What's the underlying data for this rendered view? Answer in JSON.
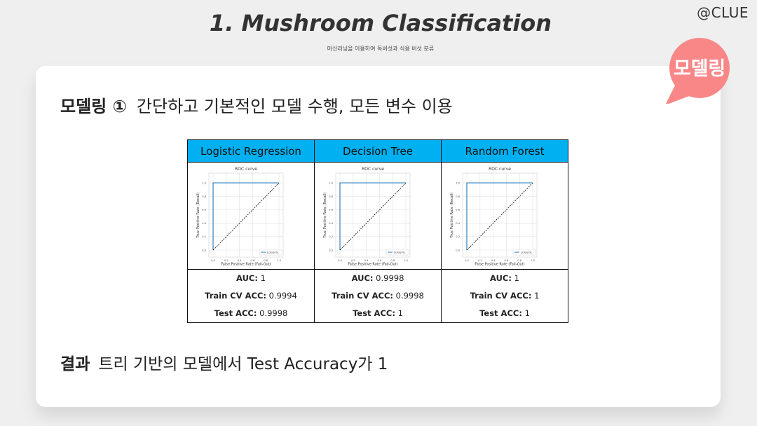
{
  "brand": "@CLUE",
  "title": "1.  Mushroom Classification",
  "subtitle": "머신러닝을 이용하여 독버섯과 식용 버섯 분류",
  "badge": {
    "label": "모델링",
    "color": "#f98788"
  },
  "heading": {
    "label": "모델링 ①",
    "text": "간단하고 기본적인 모델 수행, 모든 변수 이용"
  },
  "models": [
    {
      "name": "Logistic Regression",
      "metrics": [
        {
          "label": "AUC:",
          "value": " 1"
        },
        {
          "label": "Train CV ACC:",
          "value": " 0.9994"
        },
        {
          "label": "Test ACC:",
          "value": " 0.9998"
        }
      ]
    },
    {
      "name": "Decision Tree",
      "metrics": [
        {
          "label": "AUC:",
          "value": " 0.9998"
        },
        {
          "label": "Train CV ACC:",
          "value": " 0.9998"
        },
        {
          "label": "Test ACC:",
          "value": " 1"
        }
      ]
    },
    {
      "name": "Random Forest",
      "metrics": [
        {
          "label": "AUC:",
          "value": " 1"
        },
        {
          "label": "Train CV ACC:",
          "value": " 1"
        },
        {
          "label": "Test ACC:",
          "value": " 1"
        }
      ]
    }
  ],
  "chart_data": [
    {
      "type": "line",
      "title": "ROC curve",
      "xlabel": "False Positive Rate (Fall-Out)",
      "ylabel": "True Positive Rate (Recall)",
      "xlim": [
        0,
        1
      ],
      "ylim": [
        0,
        1
      ],
      "xticks": [
        "0.0",
        "0.2",
        "0.4",
        "0.6",
        "0.8",
        "1.0"
      ],
      "yticks": [
        "0.0",
        "0.2",
        "0.4",
        "0.6",
        "0.8",
        "1.0"
      ],
      "grid": true,
      "legend": "bottom-right",
      "series": [
        {
          "name": "LOGISTIC",
          "x": [
            0,
            0,
            1
          ],
          "y": [
            0,
            1,
            1
          ],
          "color": "#1f77b4"
        },
        {
          "x": [
            0,
            1
          ],
          "y": [
            0,
            1
          ],
          "color": "#000000",
          "dashed": true
        }
      ]
    },
    {
      "type": "line",
      "title": "ROC curve",
      "xlabel": "False Positive Rate (Fall-Out)",
      "ylabel": "True Positive Rate (Recall)",
      "xlim": [
        0,
        1
      ],
      "ylim": [
        0,
        1
      ],
      "xticks": [
        "0.0",
        "0.2",
        "0.4",
        "0.6",
        "0.8",
        "1.0"
      ],
      "yticks": [
        "0.0",
        "0.2",
        "0.4",
        "0.6",
        "0.8",
        "1.0"
      ],
      "grid": true,
      "legend": "bottom-right",
      "series": [
        {
          "name": "LOGISTIC",
          "x": [
            0,
            0,
            1
          ],
          "y": [
            0,
            1,
            1
          ],
          "color": "#1f77b4"
        },
        {
          "x": [
            0,
            1
          ],
          "y": [
            0,
            1
          ],
          "color": "#000000",
          "dashed": true
        }
      ]
    },
    {
      "type": "line",
      "title": "ROC curve",
      "xlabel": "False Positive Rate (Fall-Out)",
      "ylabel": "True Positive Rate (Recall)",
      "xlim": [
        0,
        1
      ],
      "ylim": [
        0,
        1
      ],
      "xticks": [
        "0.0",
        "0.2",
        "0.4",
        "0.6",
        "0.8",
        "1.0"
      ],
      "yticks": [
        "0.0",
        "0.2",
        "0.4",
        "0.6",
        "0.8",
        "1.0"
      ],
      "grid": true,
      "legend": "bottom-right",
      "series": [
        {
          "name": "LOGISTIC",
          "x": [
            0,
            0,
            1
          ],
          "y": [
            0,
            1,
            1
          ],
          "color": "#1f77b4"
        },
        {
          "x": [
            0,
            1
          ],
          "y": [
            0,
            1
          ],
          "color": "#000000",
          "dashed": true
        }
      ]
    }
  ],
  "result": {
    "label": "결과",
    "text": "트리 기반의 모델에서 Test Accuracy가 1"
  }
}
